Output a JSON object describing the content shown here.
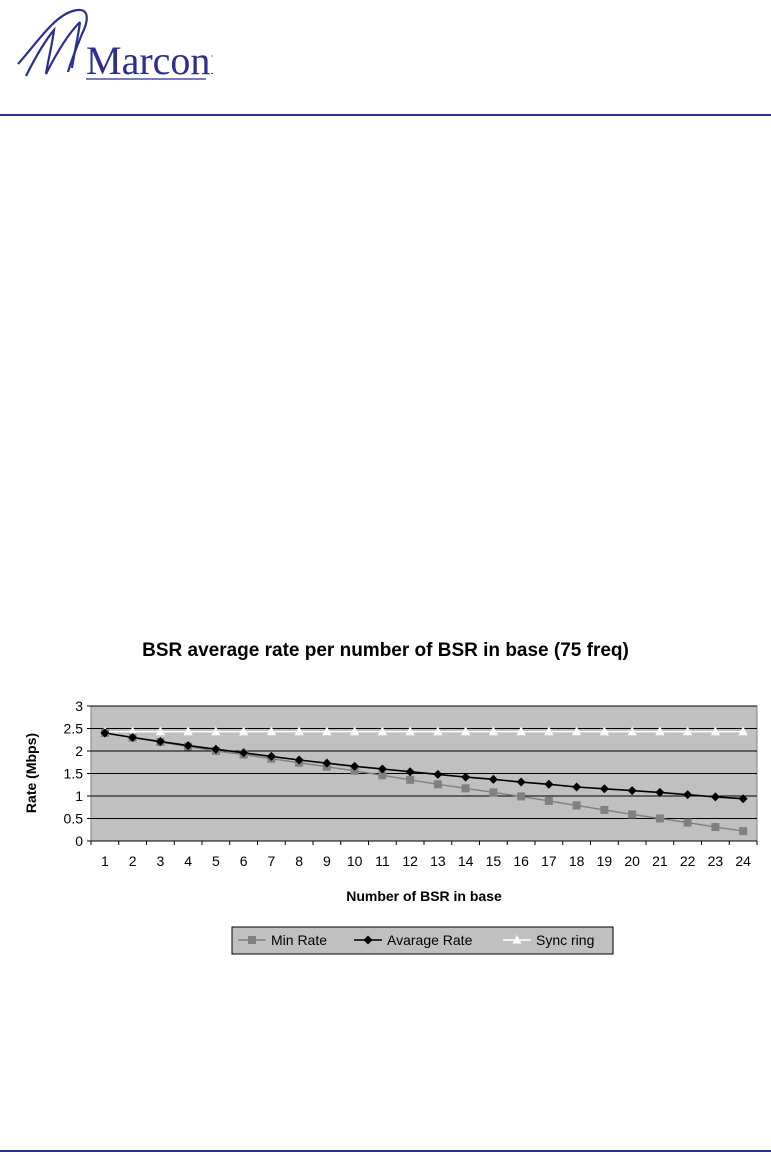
{
  "logo": {
    "wordmark": "Marconi",
    "color": "#2b2f8f"
  },
  "chart_data": {
    "type": "line",
    "title": "BSR average rate per number of BSR in base (75 freq)",
    "xlabel": "Number of BSR in base",
    "ylabel": "Rate (Mbps)",
    "ylim": [
      0,
      3
    ],
    "yticks": [
      "0",
      "0.5",
      "1",
      "1.5",
      "2",
      "2.5",
      "3"
    ],
    "grid": true,
    "plot_background": "#c0c0c0",
    "legend_position": "bottom",
    "categories": [
      "1",
      "2",
      "3",
      "4",
      "5",
      "6",
      "7",
      "8",
      "9",
      "10",
      "11",
      "12",
      "13",
      "14",
      "15",
      "16",
      "17",
      "18",
      "19",
      "20",
      "21",
      "22",
      "23",
      "24"
    ],
    "series": [
      {
        "name": "Min Rate",
        "color": "#808080",
        "marker": "square",
        "values": [
          2.4,
          2.3,
          2.2,
          2.1,
          2.0,
          1.92,
          1.83,
          1.74,
          1.65,
          1.56,
          1.46,
          1.36,
          1.26,
          1.17,
          1.08,
          0.99,
          0.89,
          0.79,
          0.69,
          0.59,
          0.5,
          0.41,
          0.31,
          0.22
        ]
      },
      {
        "name": "Avarage Rate",
        "color": "#000000",
        "marker": "diamond",
        "values": [
          2.4,
          2.3,
          2.21,
          2.12,
          2.04,
          1.96,
          1.88,
          1.8,
          1.73,
          1.66,
          1.6,
          1.54,
          1.48,
          1.42,
          1.37,
          1.31,
          1.26,
          1.2,
          1.16,
          1.12,
          1.08,
          1.03,
          0.98,
          0.94
        ]
      },
      {
        "name": "Sync ring",
        "color": "#ffffff",
        "marker": "triangle",
        "values": [
          2.43,
          2.43,
          2.43,
          2.43,
          2.43,
          2.43,
          2.43,
          2.43,
          2.43,
          2.43,
          2.43,
          2.43,
          2.43,
          2.43,
          2.43,
          2.43,
          2.43,
          2.43,
          2.43,
          2.43,
          2.43,
          2.43,
          2.43,
          2.43
        ]
      }
    ]
  }
}
